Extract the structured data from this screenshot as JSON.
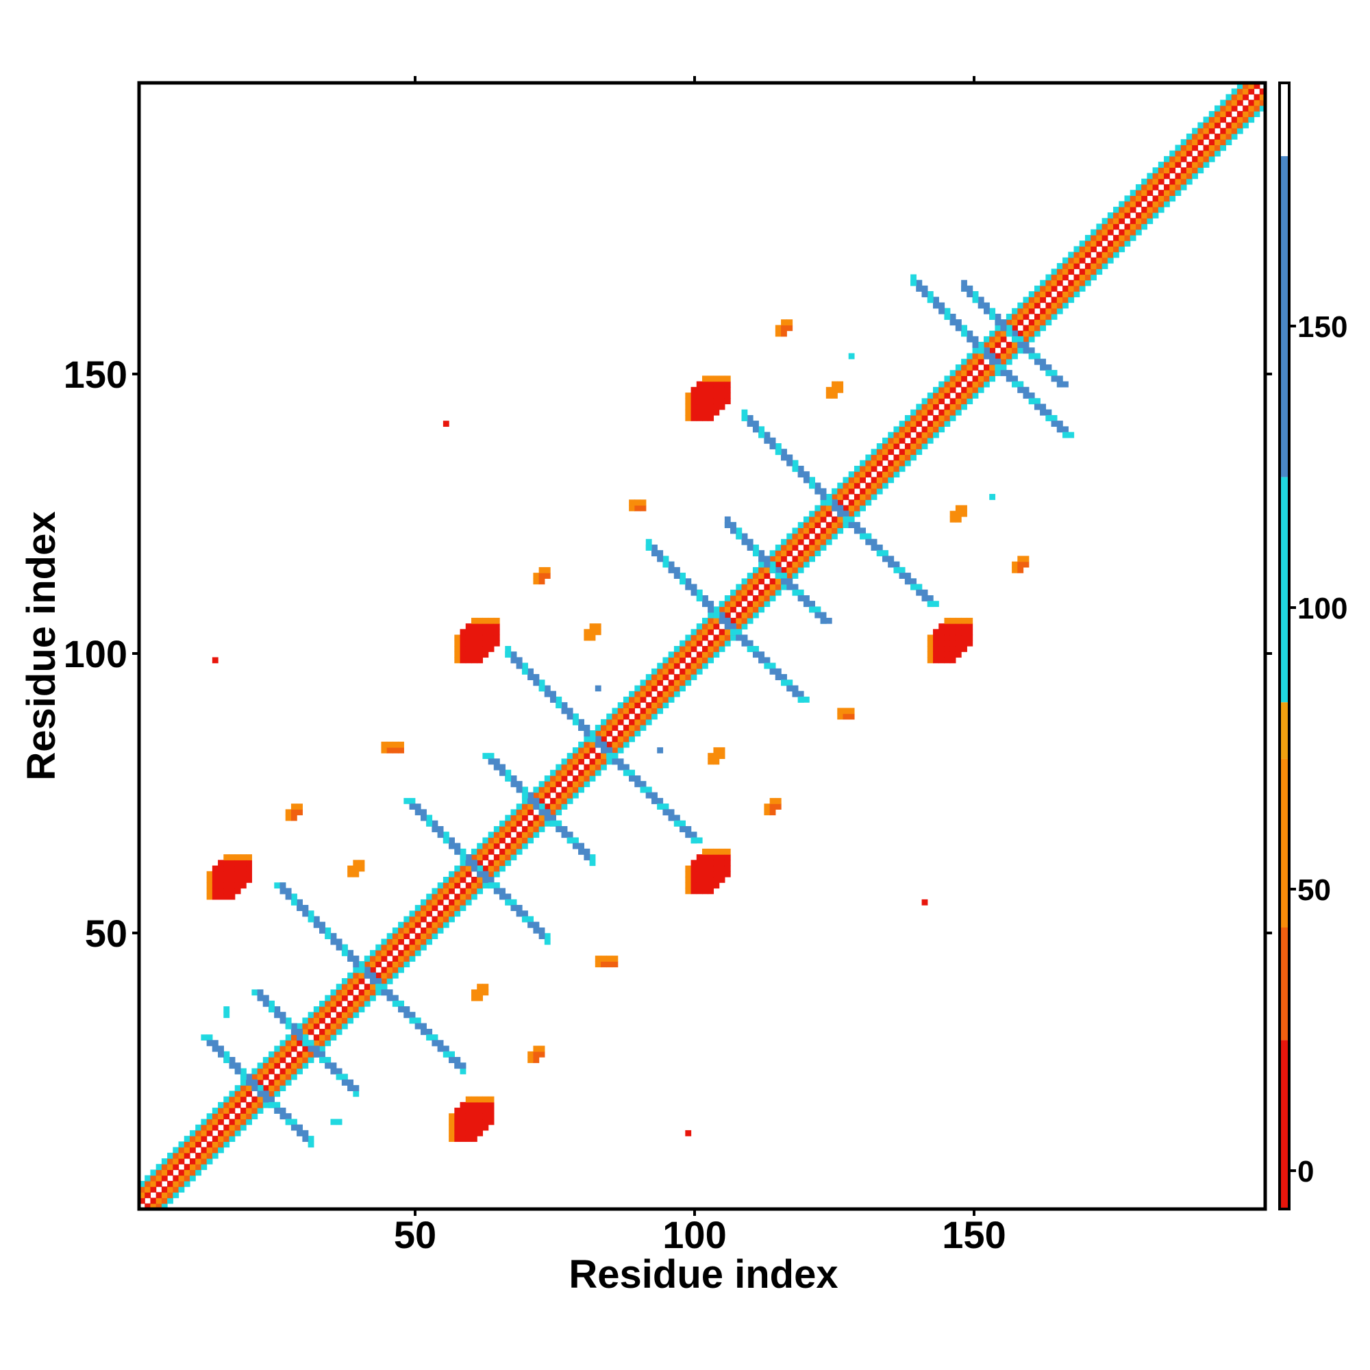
{
  "chart_data": {
    "type": "heatmap",
    "title": "",
    "xlabel": "Residue index",
    "ylabel": "Residue index",
    "xlim": [
      1,
      201
    ],
    "ylim": [
      1,
      201
    ],
    "x_ticks": [
      50,
      100,
      150
    ],
    "y_ticks": [
      50,
      100,
      150
    ],
    "grid": false,
    "colorbar": {
      "ticks": [
        0,
        50,
        100,
        150
      ],
      "range": [
        -5,
        195
      ],
      "bands": [
        {
          "from": -5,
          "to": 25,
          "color": "#e8160c"
        },
        {
          "from": 25,
          "to": 45,
          "color": "#f06010"
        },
        {
          "from": 45,
          "to": 75,
          "color": "#f88c0a"
        },
        {
          "from": 75,
          "to": 85,
          "color": "#f0a010"
        },
        {
          "from": 85,
          "to": 125,
          "color": "#20d8e0"
        },
        {
          "from": 125,
          "to": 182,
          "color": "#4a88c8"
        },
        {
          "from": 182,
          "to": 195,
          "color": "#ffffff"
        }
      ]
    },
    "colors": {
      "red": "#e8160c",
      "red_orange": "#f06010",
      "orange": "#f88c0a",
      "cyan": "#20d8e0",
      "blue": "#4a88c8"
    },
    "diagonal": {
      "from": 1,
      "to": 201
    },
    "antiparallel_segments": [
      {
        "from": [
          12,
          31
        ],
        "to": [
          29,
          14
        ],
        "width": 2
      },
      {
        "from": [
          21,
          39
        ],
        "to": [
          38,
          22
        ],
        "width": 2
      },
      {
        "from": [
          25,
          58
        ],
        "to": [
          57,
          26
        ],
        "width": 2
      },
      {
        "from": [
          48,
          73
        ],
        "to": [
          70,
          51
        ],
        "width": 2
      },
      {
        "from": [
          62,
          81
        ],
        "to": [
          79,
          64
        ],
        "width": 2
      },
      {
        "from": [
          66,
          99
        ],
        "to": [
          99,
          66
        ],
        "width": 2
      },
      {
        "from": [
          91,
          118
        ],
        "to": [
          118,
          91
        ],
        "width": 2
      },
      {
        "from": [
          105,
          122
        ],
        "to": [
          122,
          105
        ],
        "width": 2
      },
      {
        "from": [
          108,
          141
        ],
        "to": [
          141,
          108
        ],
        "width": 2
      },
      {
        "from": [
          138,
          165
        ],
        "to": [
          165,
          138
        ],
        "width": 2
      },
      {
        "from": [
          147,
          164
        ],
        "to": [
          164,
          147
        ],
        "width": 2
      }
    ],
    "contact_blobs": [
      {
        "x": 13,
        "y": 56,
        "color": "red",
        "w": 8,
        "h": 8
      },
      {
        "x": 56,
        "y": 13,
        "color": "red",
        "w": 8,
        "h": 8
      },
      {
        "x": 57,
        "y": 98,
        "color": "red",
        "w": 8,
        "h": 8
      },
      {
        "x": 98,
        "y": 57,
        "color": "red",
        "w": 8,
        "h": 8
      },
      {
        "x": 98,
        "y": 141,
        "color": "red",
        "w": 8,
        "h": 8
      },
      {
        "x": 141,
        "y": 98,
        "color": "red",
        "w": 8,
        "h": 8
      },
      {
        "x": 44,
        "y": 82,
        "color": "red_orange",
        "w": 4,
        "h": 2
      },
      {
        "x": 82,
        "y": 44,
        "color": "red_orange",
        "w": 4,
        "h": 2
      },
      {
        "x": 27,
        "y": 70,
        "color": "red_orange",
        "w": 3,
        "h": 3
      },
      {
        "x": 70,
        "y": 27,
        "color": "red_orange",
        "w": 3,
        "h": 3
      },
      {
        "x": 71,
        "y": 112,
        "color": "red_orange",
        "w": 3,
        "h": 3
      },
      {
        "x": 112,
        "y": 71,
        "color": "red_orange",
        "w": 3,
        "h": 3
      },
      {
        "x": 114,
        "y": 156,
        "color": "red_orange",
        "w": 3,
        "h": 3
      },
      {
        "x": 156,
        "y": 114,
        "color": "red_orange",
        "w": 3,
        "h": 3
      },
      {
        "x": 88,
        "y": 125,
        "color": "red_orange",
        "w": 3,
        "h": 2
      },
      {
        "x": 125,
        "y": 88,
        "color": "red_orange",
        "w": 3,
        "h": 2
      },
      {
        "x": 60,
        "y": 38,
        "color": "orange",
        "w": 3,
        "h": 3
      },
      {
        "x": 38,
        "y": 60,
        "color": "orange",
        "w": 3,
        "h": 3
      },
      {
        "x": 102,
        "y": 80,
        "color": "orange",
        "w": 3,
        "h": 3
      },
      {
        "x": 80,
        "y": 102,
        "color": "orange",
        "w": 3,
        "h": 3
      },
      {
        "x": 145,
        "y": 123,
        "color": "orange",
        "w": 3,
        "h": 3
      },
      {
        "x": 123,
        "y": 145,
        "color": "orange",
        "w": 3,
        "h": 3
      },
      {
        "x": 14,
        "y": 98,
        "color": "red",
        "w": 1,
        "h": 1
      },
      {
        "x": 98,
        "y": 14,
        "color": "red",
        "w": 1,
        "h": 1
      },
      {
        "x": 55,
        "y": 140,
        "color": "red",
        "w": 1,
        "h": 1
      },
      {
        "x": 140,
        "y": 55,
        "color": "red",
        "w": 1,
        "h": 1
      },
      {
        "x": 35,
        "y": 16,
        "color": "cyan",
        "w": 2,
        "h": 1
      },
      {
        "x": 16,
        "y": 35,
        "color": "cyan",
        "w": 1,
        "h": 2
      },
      {
        "x": 82,
        "y": 93,
        "color": "blue",
        "w": 1,
        "h": 1
      },
      {
        "x": 93,
        "y": 82,
        "color": "blue",
        "w": 1,
        "h": 1
      },
      {
        "x": 127,
        "y": 152,
        "color": "cyan",
        "w": 1,
        "h": 1
      },
      {
        "x": 152,
        "y": 127,
        "color": "cyan",
        "w": 1,
        "h": 1
      }
    ]
  }
}
